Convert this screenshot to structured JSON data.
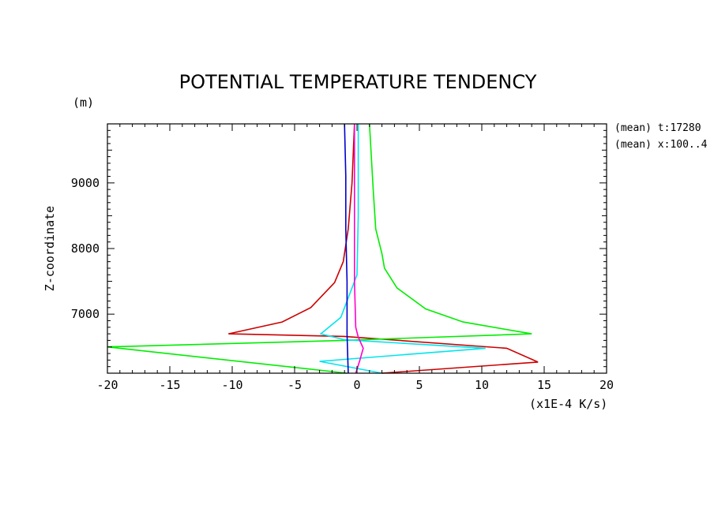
{
  "chart_data": {
    "type": "line",
    "title": "POTENTIAL TEMPERATURE TENDENCY",
    "ylabel": "Z-coordinate",
    "yunit": "(m)",
    "xunit": "(x1E-4 K/s)",
    "xlim": [
      -20,
      20
    ],
    "ylim": [
      6100,
      9900
    ],
    "xticks": [
      -20,
      -15,
      -10,
      -5,
      0,
      5,
      10,
      15,
      20
    ],
    "xtick_labels": [
      "-20",
      "-15",
      "-10",
      "-5",
      "0",
      "5",
      "10",
      "15",
      "20"
    ],
    "yticks": [
      7000,
      8000,
      9000
    ],
    "ytick_labels": [
      "7000",
      "8000",
      "9000"
    ],
    "annotations": [
      "(mean) t:17280",
      "(mean) x:100..4"
    ],
    "grid": false,
    "series": [
      {
        "color": "#cc0000",
        "points": [
          [
            2,
            6100
          ],
          [
            14.5,
            6270
          ],
          [
            12,
            6480
          ],
          [
            -1,
            6660
          ],
          [
            -10.3,
            6700
          ],
          [
            -6,
            6880
          ],
          [
            -3.7,
            7100
          ],
          [
            -1.8,
            7480
          ],
          [
            -1.1,
            7800
          ],
          [
            -0.7,
            8300
          ],
          [
            -0.4,
            9000
          ],
          [
            -0.2,
            9900
          ]
        ]
      },
      {
        "color": "#00ee00",
        "points": [
          [
            -0.8,
            6100
          ],
          [
            -20,
            6500
          ],
          [
            -1,
            6600
          ],
          [
            14,
            6700
          ],
          [
            8.5,
            6880
          ],
          [
            5.5,
            7080
          ],
          [
            3.2,
            7400
          ],
          [
            2.2,
            7700
          ],
          [
            2.0,
            7920
          ],
          [
            1.5,
            8300
          ],
          [
            1.3,
            8900
          ],
          [
            1.0,
            9900
          ]
        ]
      },
      {
        "color": "#00e5ee",
        "points": [
          [
            2,
            6100
          ],
          [
            -3,
            6280
          ],
          [
            10.3,
            6480
          ],
          [
            -1,
            6610
          ],
          [
            -2.9,
            6700
          ],
          [
            -1.3,
            6950
          ],
          [
            0,
            7600
          ],
          [
            0.1,
            8500
          ],
          [
            0.1,
            9900
          ]
        ]
      },
      {
        "color": "#ff00cc",
        "points": [
          [
            -0.1,
            6100
          ],
          [
            0.2,
            6280
          ],
          [
            0.5,
            6480
          ],
          [
            0.1,
            6650
          ],
          [
            -0.1,
            6800
          ],
          [
            -0.2,
            7500
          ],
          [
            -0.2,
            9900
          ]
        ]
      },
      {
        "color": "#0000cc",
        "points": [
          [
            -0.7,
            6100
          ],
          [
            -0.8,
            6700
          ],
          [
            -0.8,
            7500
          ],
          [
            -0.9,
            8300
          ],
          [
            -0.9,
            9100
          ],
          [
            -1.0,
            9900
          ]
        ]
      }
    ]
  }
}
